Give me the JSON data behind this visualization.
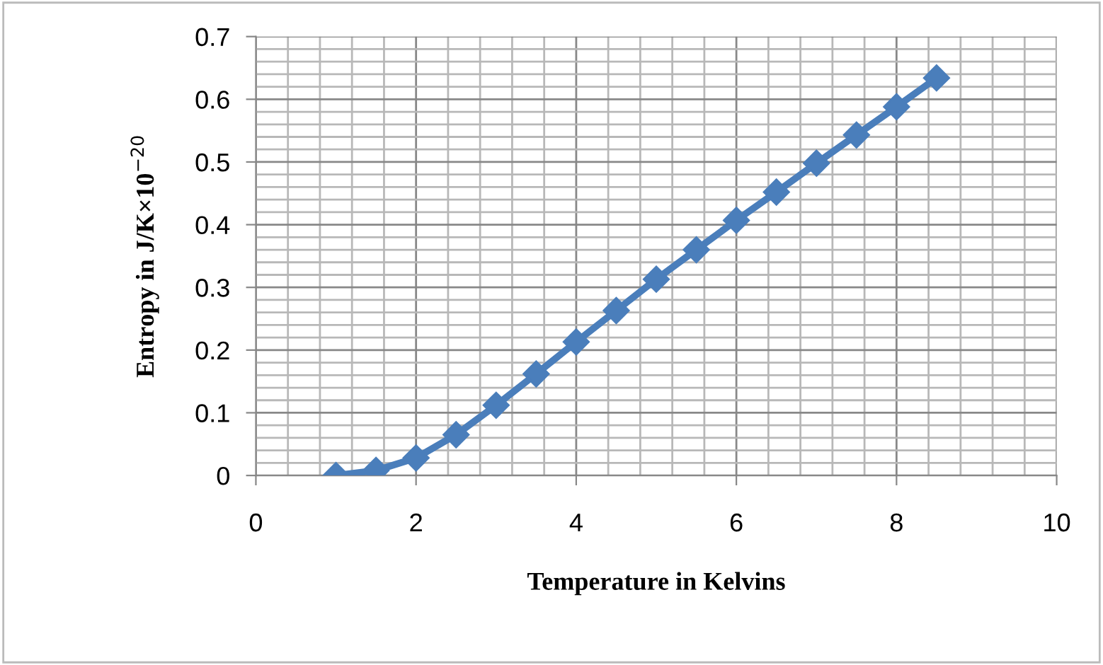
{
  "chart_data": {
    "type": "line",
    "xlabel": "Temperature in Kelvins",
    "ylabel": "Entropy in J/K×10$^{−20}$",
    "x": [
      1,
      1.5,
      2,
      2.5,
      3,
      3.5,
      4,
      4.5,
      5,
      5.5,
      6,
      6.5,
      7,
      7.5,
      8,
      8.5
    ],
    "series": [
      {
        "color": "#4a7ebb",
        "values": [
          0,
          0.008,
          0.028,
          0.065,
          0.112,
          0.162,
          0.213,
          0.263,
          0.313,
          0.36,
          0.407,
          0.452,
          0.498,
          0.543,
          0.588,
          0.634
        ]
      }
    ],
    "xlim": [
      0,
      10
    ],
    "xticks": [
      0,
      2,
      4,
      6,
      8,
      10
    ],
    "ylim": [
      0,
      0.7
    ],
    "yticks": [
      0,
      0.1,
      0.2,
      0.3,
      0.4,
      0.5,
      0.6,
      0.7
    ],
    "grid": true,
    "marker": "diamond",
    "line_style": "solid",
    "legend": false
  }
}
